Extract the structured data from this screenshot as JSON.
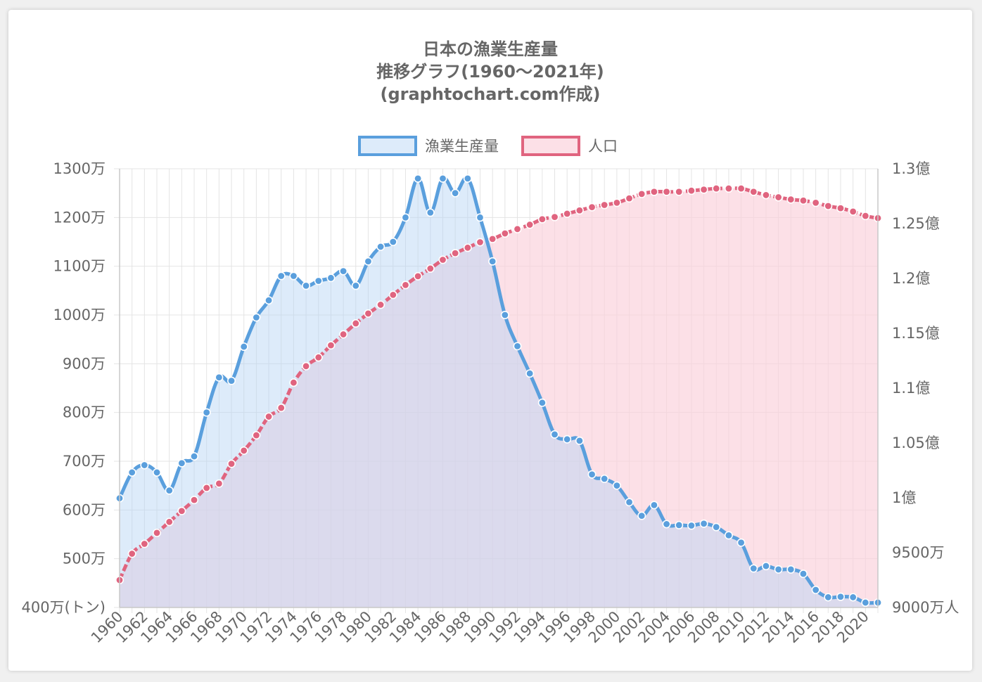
{
  "chart_data": {
    "type": "line",
    "title": [
      "日本の漁業生産量",
      "推移グラフ(1960〜2021年)",
      "(graphtochart.com作成)"
    ],
    "x": [
      1960,
      1961,
      1962,
      1963,
      1964,
      1965,
      1966,
      1967,
      1968,
      1969,
      1970,
      1971,
      1972,
      1973,
      1974,
      1975,
      1976,
      1977,
      1978,
      1979,
      1980,
      1981,
      1982,
      1983,
      1984,
      1985,
      1986,
      1987,
      1988,
      1989,
      1990,
      1991,
      1992,
      1993,
      1994,
      1995,
      1996,
      1997,
      1998,
      1999,
      2000,
      2001,
      2002,
      2003,
      2004,
      2005,
      2006,
      2007,
      2008,
      2009,
      2010,
      2011,
      2012,
      2013,
      2014,
      2015,
      2016,
      2017,
      2018,
      2019,
      2020,
      2021
    ],
    "x_tick_labels": [
      "1960",
      "1962",
      "1964",
      "1966",
      "1968",
      "1970",
      "1972",
      "1974",
      "1976",
      "1978",
      "1980",
      "1982",
      "1984",
      "1986",
      "1988",
      "1990",
      "1992",
      "1994",
      "1996",
      "1998",
      "2000",
      "2002",
      "2004",
      "2006",
      "2008",
      "2010",
      "2012",
      "2014",
      "2016",
      "2018",
      "2020"
    ],
    "series": [
      {
        "name": "漁業生産量",
        "axis": "left",
        "color": "#5a9fdd",
        "fill": "rgba(180,210,245,0.45)",
        "values": [
          6240000,
          6770000,
          6920000,
          6770000,
          6400000,
          6960000,
          7100000,
          8000000,
          8720000,
          8650000,
          9350000,
          9950000,
          10300000,
          10800000,
          10800000,
          10600000,
          10700000,
          10760000,
          10900000,
          10600000,
          11100000,
          11400000,
          11500000,
          12000000,
          12800000,
          12100000,
          12800000,
          12500000,
          12800000,
          12000000,
          11100000,
          10000000,
          9360000,
          8800000,
          8200000,
          7550000,
          7450000,
          7420000,
          6730000,
          6640000,
          6500000,
          6160000,
          5880000,
          6100000,
          5710000,
          5690000,
          5680000,
          5720000,
          5650000,
          5480000,
          5330000,
          4800000,
          4850000,
          4780000,
          4780000,
          4690000,
          4360000,
          4210000,
          4220000,
          4210000,
          4100000,
          4100000
        ]
      },
      {
        "name": "人口",
        "axis": "right",
        "color": "#e0647f",
        "fill": "rgba(250,208,218,0.65)",
        "values": [
          92500000,
          94900000,
          95800000,
          96800000,
          97800000,
          98800000,
          99800000,
          100900000,
          101300000,
          103100000,
          104300000,
          105700000,
          107400000,
          108200000,
          110500000,
          112000000,
          112800000,
          113900000,
          114900000,
          115900000,
          116800000,
          117600000,
          118500000,
          119400000,
          120200000,
          120900000,
          121700000,
          122300000,
          122800000,
          123300000,
          123600000,
          124100000,
          124500000,
          124900000,
          125400000,
          125600000,
          125900000,
          126200000,
          126500000,
          126700000,
          126900000,
          127300000,
          127700000,
          127900000,
          127900000,
          127900000,
          128000000,
          128100000,
          128200000,
          128200000,
          128200000,
          127900000,
          127600000,
          127400000,
          127200000,
          127100000,
          126900000,
          126600000,
          126400000,
          126100000,
          125700000,
          125500000
        ]
      }
    ],
    "y_left": {
      "ylim": [
        4000000,
        13000000
      ],
      "tick_labels": [
        "400万(トン)",
        "500万",
        "600万",
        "700万",
        "800万",
        "900万",
        "1000万",
        "1100万",
        "1200万",
        "1300万"
      ]
    },
    "y_right": {
      "ylim": [
        90000000,
        130000000
      ],
      "tick_labels": [
        "9000万人",
        "9500万",
        "1億",
        "1.05億",
        "1.1億",
        "1.15億",
        "1.2億",
        "1.25億",
        "1.3億"
      ]
    },
    "legend": {
      "placement": "top-center",
      "labels": [
        "漁業生産量",
        "人口"
      ]
    },
    "grid": true
  }
}
